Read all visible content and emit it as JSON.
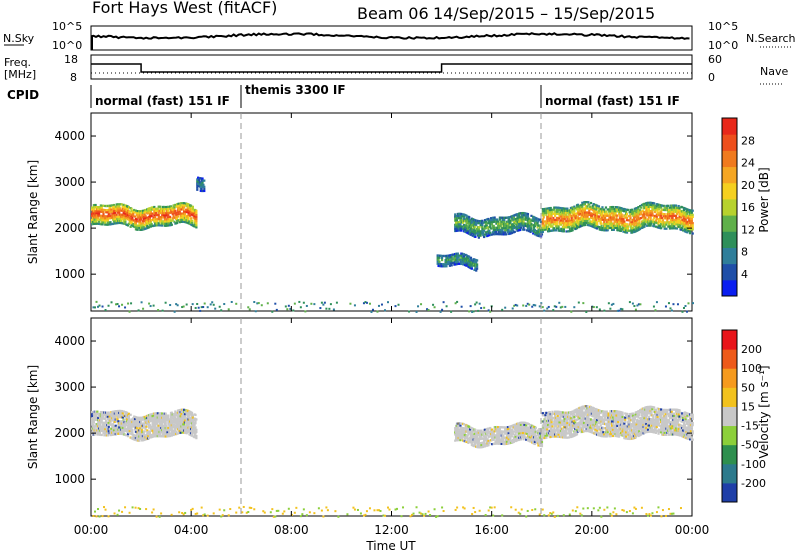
{
  "header": {
    "title": "Fort Hays West (fitACF)",
    "beam": "Beam 06",
    "date_range": "14/Sep/2015 – 15/Sep/2015"
  },
  "sky_panel": {
    "left_label": "N.Sky",
    "right_label": "N.Search",
    "left_ticks": [
      "10^5",
      "10^0"
    ],
    "right_ticks": [
      "10^5",
      "10^0"
    ]
  },
  "freq_panel": {
    "left_label_top": "Freq.",
    "left_label_bottom": "[MHz]",
    "left_ticks": [
      "18",
      "8"
    ],
    "right_ticks": [
      "60",
      "0"
    ],
    "right_label": "Nave"
  },
  "cpid": {
    "label": "CPID",
    "segments": [
      {
        "label": "normal (fast) 151 IF",
        "start_hour": 0,
        "end_hour": 6
      },
      {
        "label": "themis 3300 IF",
        "start_hour": 6,
        "end_hour": 18
      },
      {
        "label": "normal (fast) 151 IF",
        "start_hour": 18,
        "end_hour": 24
      }
    ]
  },
  "colorbars": {
    "power": {
      "label": "Power [dB]",
      "ticks": [
        "28",
        "24",
        "20",
        "16",
        "12",
        "8",
        "4"
      ],
      "colors": [
        "#0a1ef0",
        "#1f4fa8",
        "#2f7e9a",
        "#2e8f5a",
        "#5fb04a",
        "#b7d22e",
        "#f5d020",
        "#f5a623",
        "#f07a1e",
        "#ee4f1c",
        "#e8281a"
      ]
    },
    "velocity": {
      "label": "Velocity [m s⁻¹]",
      "ticks": [
        "200",
        "100",
        "50",
        "15",
        "-15",
        "-50",
        "-100",
        "-200"
      ],
      "colors": [
        "#1f3fa8",
        "#2c7a8c",
        "#2e8f4e",
        "#8ccf3a",
        "#c8c8c8",
        "#f2c21e",
        "#f59a1e",
        "#ee5a1a",
        "#e8141a"
      ]
    }
  },
  "chart_data": [
    {
      "type": "heatmap",
      "name": "power",
      "ylabel": "Slant Range [km]",
      "ylim": [
        200,
        4500
      ],
      "xlim_hours": [
        0,
        24
      ],
      "y_ticks": [
        1000,
        2000,
        3000,
        4000
      ],
      "x_ticks": [
        "00:00",
        "04:00",
        "08:00",
        "12:00",
        "16:00",
        "20:00",
        "00:00"
      ],
      "ground_scatter_band_km": 200,
      "echo_regions": [
        {
          "t_start": 0.0,
          "t_end": 4.2,
          "range_center_km": 2300,
          "thickness_km": 450,
          "power_db": 24
        },
        {
          "t_start": 4.2,
          "t_end": 4.5,
          "range_center_km": 3050,
          "thickness_km": 300,
          "power_db": 8
        },
        {
          "t_start": 13.8,
          "t_end": 15.4,
          "range_center_km": 1300,
          "thickness_km": 250,
          "power_db": 10
        },
        {
          "t_start": 14.5,
          "t_end": 18.0,
          "range_center_km": 2100,
          "thickness_km": 400,
          "power_db": 12
        },
        {
          "t_start": 18.0,
          "t_end": 24.0,
          "range_center_km": 2250,
          "thickness_km": 500,
          "power_db": 22
        }
      ]
    },
    {
      "type": "heatmap",
      "name": "velocity",
      "ylabel": "Slant Range [km]",
      "xlabel": "Time UT",
      "ylim": [
        200,
        4500
      ],
      "xlim_hours": [
        0,
        24
      ],
      "y_ticks": [
        1000,
        2000,
        3000,
        4000
      ],
      "x_ticks": [
        "00:00",
        "04:00",
        "08:00",
        "12:00",
        "16:00",
        "20:00",
        "00:00"
      ],
      "echo_regions": [
        {
          "t_start": 0.0,
          "t_end": 4.2,
          "range_center_km": 2200,
          "thickness_km": 500,
          "velocity_ms": 0
        },
        {
          "t_start": 14.5,
          "t_end": 18.0,
          "range_center_km": 2000,
          "thickness_km": 400,
          "velocity_ms": 0
        },
        {
          "t_start": 18.0,
          "t_end": 24.0,
          "range_center_km": 2250,
          "thickness_km": 550,
          "velocity_ms": 0
        }
      ]
    }
  ]
}
